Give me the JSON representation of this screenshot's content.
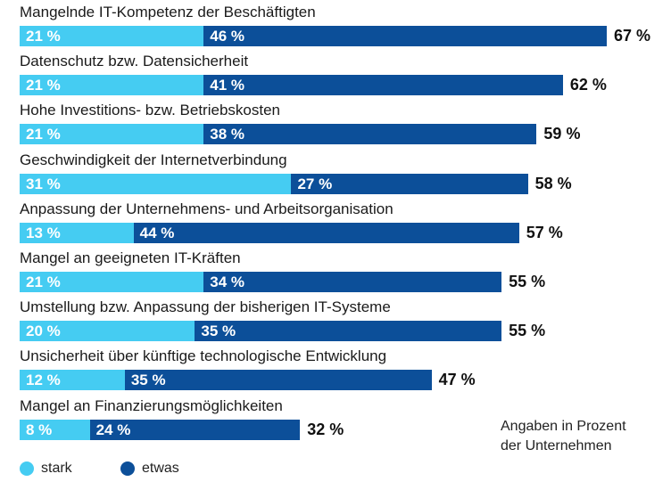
{
  "chart_data": {
    "type": "bar",
    "orientation": "horizontal",
    "stacked": true,
    "categories": [
      "Mangelnde IT-Kompetenz der Beschäftigten",
      "Datenschutz bzw. Datensicherheit",
      "Hohe Investitions- bzw. Betriebskosten",
      "Geschwindigkeit der Internetverbindung",
      "Anpassung der Unternehmens- und Arbeitsorganisation",
      "Mangel an geeigneten IT-Kräften",
      "Umstellung bzw. Anpassung der bisherigen IT-Systeme",
      "Unsicherheit über künftige technologische Entwicklung",
      "Mangel an Finanzierungsmöglichkeiten"
    ],
    "series": [
      {
        "name": "stark",
        "color": "#45ccf2",
        "values": [
          21,
          21,
          21,
          31,
          13,
          21,
          20,
          12,
          8
        ]
      },
      {
        "name": "etwas",
        "color": "#0c4f99",
        "values": [
          46,
          41,
          38,
          27,
          44,
          34,
          35,
          35,
          24
        ]
      }
    ],
    "totals": [
      67,
      62,
      59,
      58,
      57,
      55,
      55,
      47,
      32
    ],
    "unit_suffix": " %",
    "xlim": [
      0,
      67
    ],
    "grid": false,
    "legend_position": "bottom-left",
    "note": [
      "Angaben in Prozent",
      "der Unternehmen"
    ]
  }
}
